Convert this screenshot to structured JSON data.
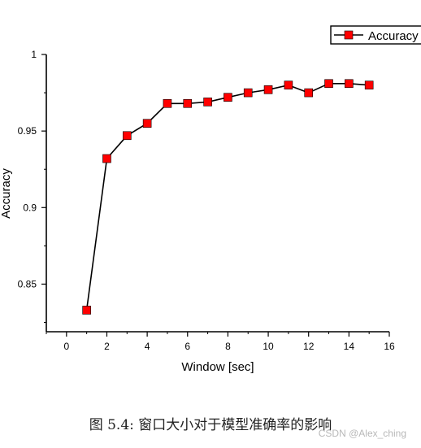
{
  "chart_data": {
    "type": "line",
    "title": "",
    "xlabel": "Window [sec]",
    "ylabel": "Accuracy",
    "xlim": [
      -1,
      16
    ],
    "ylim": [
      0.8189,
      1.0
    ],
    "xticks": [
      0,
      2,
      4,
      6,
      8,
      10,
      12,
      14,
      16
    ],
    "yticks": [
      0.85,
      0.9,
      0.95,
      1
    ],
    "ytick_labels": [
      "0.85",
      "0.9",
      "0.95",
      "1"
    ],
    "grid": false,
    "legend_position": "top-right",
    "series": [
      {
        "name": "Accuracy",
        "color": "#ff0000",
        "line_color": "#000000",
        "marker": "square",
        "x": [
          1,
          2,
          3,
          4,
          5,
          6,
          7,
          8,
          9,
          10,
          11,
          12,
          13,
          14,
          15
        ],
        "y": [
          0.833,
          0.932,
          0.947,
          0.955,
          0.968,
          0.968,
          0.969,
          0.972,
          0.975,
          0.977,
          0.98,
          0.975,
          0.981,
          0.981,
          0.98
        ]
      }
    ]
  },
  "caption": "图 5.4: 窗口大小对于模型准确率的影响",
  "watermark": "CSDN @Alex_ching"
}
